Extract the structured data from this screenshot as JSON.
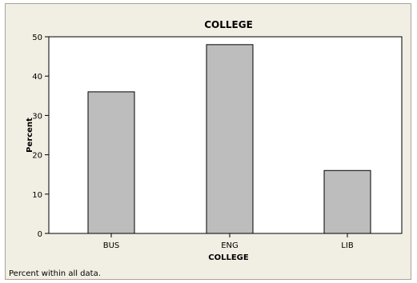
{
  "chart_data": {
    "type": "bar",
    "title": "COLLEGE",
    "xlabel": "COLLEGE",
    "ylabel": "Percent",
    "categories": [
      "BUS",
      "ENG",
      "LIB"
    ],
    "values": [
      36,
      48,
      16
    ],
    "ylim": [
      0,
      50
    ],
    "yticks": [
      0,
      10,
      20,
      30,
      40,
      50
    ],
    "grid": false,
    "legend": "none",
    "bar_color": "#bdbdbd",
    "footnote": "Percent within all data."
  }
}
